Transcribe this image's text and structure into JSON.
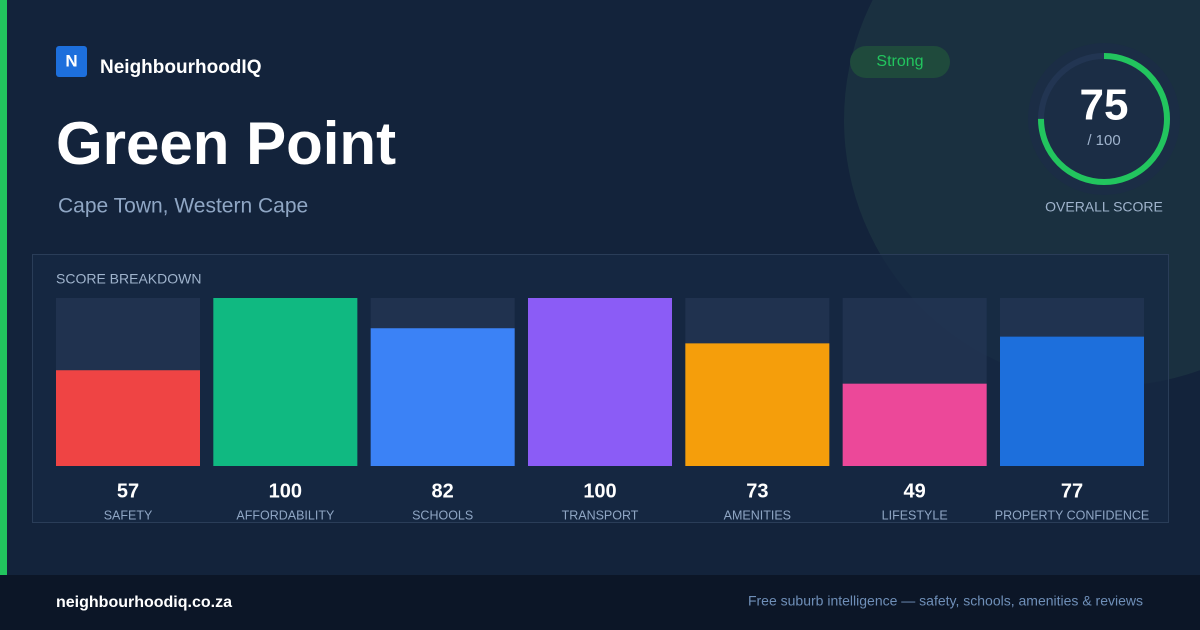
{
  "brand": {
    "logo": "N",
    "name": "NeighbourhoodIQ"
  },
  "badge": "Strong",
  "title": "Green Point",
  "subtitle": "Cape Town, Western Cape",
  "score": {
    "value": 75,
    "max": {
      "value": 100,
      "label": "/ 100"
    },
    "label": "OVERALL SCORE",
    "color": "#22c55e"
  },
  "chart_data": {
    "type": "bar",
    "title": "SCORE BREAKDOWN",
    "categories": [
      "SAFETY",
      "AFFORDABILITY",
      "SCHOOLS",
      "TRANSPORT",
      "AMENITIES",
      "LIFESTYLE",
      "PROPERTY CONFIDENCE"
    ],
    "values": [
      57,
      100,
      82,
      100,
      73,
      49,
      77
    ],
    "colors": [
      "#ef4444",
      "#10b981",
      "#3b82f6",
      "#8b5cf6",
      "#f59e0b",
      "#ec4899",
      "#1d6fdc"
    ],
    "ylim": [
      0,
      100
    ]
  },
  "footer": {
    "url": "neighbourhoodiq.co.za",
    "tagline": "Free suburb intelligence — safety, schools, amenities & reviews"
  }
}
